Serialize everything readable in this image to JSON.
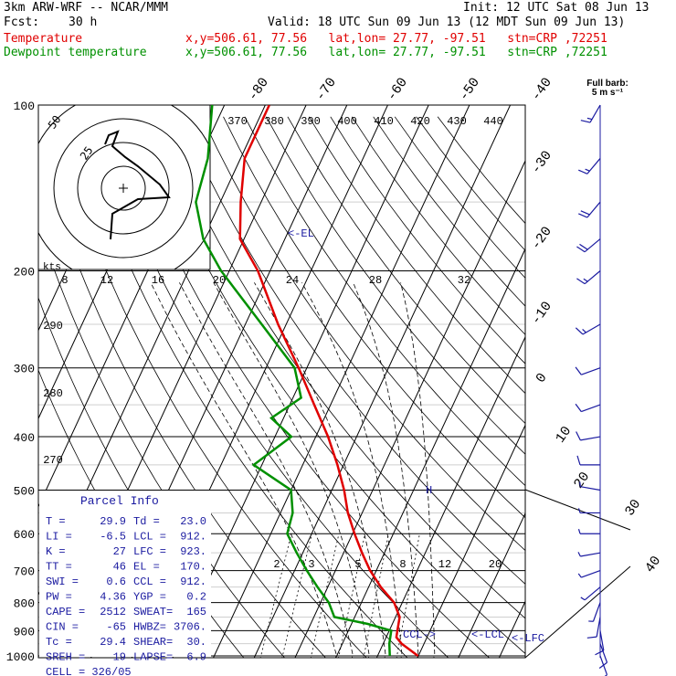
{
  "header": {
    "line1_left": "3km ARW-WRF -- NCAR/MMM",
    "line1_right": "Init: 12 UTC Sat 08 Jun 13",
    "fcst_label": "Fcst:",
    "fcst_value": "30 h",
    "valid": "Valid: 18 UTC Sun 09 Jun 13 (12 MDT Sun 09 Jun 13)",
    "temp_label": "Temperature",
    "temp_info": "x,y=506.61, 77.56   lat,lon= 27.77, -97.51   stn=CRP ,72251",
    "dew_label": "Dewpoint temperature",
    "dew_info": "x,y=506.61, 77.56   lat,lon= 27.77, -97.51   stn=CRP ,72251"
  },
  "colors": {
    "temperature": "#e00000",
    "dewpoint": "#009000",
    "text": "#000000",
    "barbs": "#1a1aa0",
    "parcel": "#1a1aa0"
  },
  "chart_data": {
    "type": "skew-t",
    "pressure_labels": [
      "100",
      "200",
      "300",
      "400",
      "500",
      "600",
      "700",
      "800",
      "900",
      "1000"
    ],
    "isotherm_labels": [
      "-80",
      "-70",
      "-60",
      "-50",
      "-40",
      "-30",
      "-20",
      "-10",
      "0",
      "10",
      "20",
      "30",
      "40"
    ],
    "theta_labels": [
      "370",
      "380",
      "390",
      "400",
      "410",
      "420",
      "430",
      "440"
    ],
    "theta_left_labels": [
      "290",
      "280",
      "270"
    ],
    "mixing_ratio_labels": [
      "2",
      "3",
      "5",
      "8",
      "12",
      "20"
    ],
    "mixing_ratio_upper_labels": [
      "8",
      "12",
      "16",
      "20",
      "24",
      "28",
      "32"
    ],
    "level_marks": [
      "<-EL",
      "<-LCL",
      "<-LFC",
      "CCL->"
    ],
    "lcl_arrow": "<-LCL",
    "lfc_arrow": "<-LFC",
    "ccl_arrow": "CCL->",
    "el_arrow": "<-EL",
    "h_mark": "H",
    "temperature_profile": [
      {
        "p": 1000,
        "t": 29.9
      },
      {
        "p": 950,
        "t": 24.5
      },
      {
        "p": 925,
        "t": 22.5
      },
      {
        "p": 900,
        "t": 22.0
      },
      {
        "p": 850,
        "t": 21.0
      },
      {
        "p": 800,
        "t": 18.0
      },
      {
        "p": 750,
        "t": 13.0
      },
      {
        "p": 700,
        "t": 8.5
      },
      {
        "p": 650,
        "t": 4.5
      },
      {
        "p": 600,
        "t": 0.5
      },
      {
        "p": 550,
        "t": -3.5
      },
      {
        "p": 500,
        "t": -7.0
      },
      {
        "p": 450,
        "t": -11.5
      },
      {
        "p": 400,
        "t": -17.0
      },
      {
        "p": 350,
        "t": -24.0
      },
      {
        "p": 300,
        "t": -32.0
      },
      {
        "p": 250,
        "t": -42.0
      },
      {
        "p": 200,
        "t": -53.0
      },
      {
        "p": 175,
        "t": -61.0
      },
      {
        "p": 150,
        "t": -65.0
      },
      {
        "p": 125,
        "t": -69.0
      },
      {
        "p": 100,
        "t": -69.0
      }
    ],
    "dewpoint_profile": [
      {
        "p": 1000,
        "td": 23.0
      },
      {
        "p": 950,
        "td": 21.5
      },
      {
        "p": 900,
        "td": 20.5
      },
      {
        "p": 875,
        "td": 14.0
      },
      {
        "p": 850,
        "td": 5.0
      },
      {
        "p": 800,
        "td": 2.0
      },
      {
        "p": 750,
        "td": -2.5
      },
      {
        "p": 700,
        "td": -7.0
      },
      {
        "p": 650,
        "td": -11.5
      },
      {
        "p": 600,
        "td": -16.0
      },
      {
        "p": 550,
        "td": -17.0
      },
      {
        "p": 500,
        "td": -20.0
      },
      {
        "p": 450,
        "td": -32.0
      },
      {
        "p": 400,
        "td": -26.0
      },
      {
        "p": 370,
        "td": -33.0
      },
      {
        "p": 340,
        "td": -28.0
      },
      {
        "p": 300,
        "td": -33.0
      },
      {
        "p": 250,
        "td": -46.0
      },
      {
        "p": 200,
        "td": -62.0
      },
      {
        "p": 175,
        "td": -70.0
      },
      {
        "p": 150,
        "td": -76.0
      },
      {
        "p": 125,
        "td": -78.0
      },
      {
        "p": 100,
        "td": -83.0
      }
    ],
    "hodograph": {
      "ring_labels": [
        "50",
        "25"
      ],
      "kts_label": "kts",
      "speed_labels": [
        "8",
        "12",
        "16",
        "20",
        "24",
        "28",
        "32"
      ],
      "path": [
        [
          -7,
          -28
        ],
        [
          -6,
          -14
        ],
        [
          1,
          -10
        ],
        [
          8,
          -6
        ],
        [
          25,
          -5
        ],
        [
          20,
          2
        ],
        [
          8,
          12
        ],
        [
          1,
          17
        ],
        [
          -6,
          23
        ],
        [
          -3,
          31
        ],
        [
          -8,
          29
        ],
        [
          -10,
          24
        ]
      ]
    },
    "wind_barb_label": "Full barb:",
    "wind_barb_unit": "5 m s⁻¹",
    "wind_profile": [
      {
        "p": 1000,
        "dir": 160,
        "spd": 5
      },
      {
        "p": 950,
        "dir": 160,
        "spd": 6
      },
      {
        "p": 900,
        "dir": 170,
        "spd": 6
      },
      {
        "p": 850,
        "dir": 190,
        "spd": 5
      },
      {
        "p": 800,
        "dir": 200,
        "spd": 4
      },
      {
        "p": 750,
        "dir": 230,
        "spd": 3
      },
      {
        "p": 700,
        "dir": 250,
        "spd": 3
      },
      {
        "p": 650,
        "dir": 260,
        "spd": 3
      },
      {
        "p": 600,
        "dir": 270,
        "spd": 3
      },
      {
        "p": 550,
        "dir": 270,
        "spd": 4
      },
      {
        "p": 500,
        "dir": 280,
        "spd": 4
      },
      {
        "p": 450,
        "dir": 270,
        "spd": 5
      },
      {
        "p": 400,
        "dir": 260,
        "spd": 6
      },
      {
        "p": 350,
        "dir": 250,
        "spd": 6
      },
      {
        "p": 300,
        "dir": 250,
        "spd": 7
      },
      {
        "p": 250,
        "dir": 240,
        "spd": 8
      },
      {
        "p": 200,
        "dir": 230,
        "spd": 9
      },
      {
        "p": 175,
        "dir": 230,
        "spd": 10
      },
      {
        "p": 150,
        "dir": 220,
        "spd": 10
      },
      {
        "p": 125,
        "dir": 220,
        "spd": 9
      },
      {
        "p": 100,
        "dir": 210,
        "spd": 8
      }
    ]
  },
  "parcel_info": {
    "title": "Parcel Info",
    "rows": [
      {
        "l1": "T  =",
        "v1": "29.9",
        "l2": "Td =",
        "v2": "23.0"
      },
      {
        "l1": "LI =",
        "v1": "-6.5",
        "l2": "LCL =",
        "v2": "912."
      },
      {
        "l1": "K  =",
        "v1": "27",
        "l2": "LFC =",
        "v2": "923."
      },
      {
        "l1": "TT =",
        "v1": "46",
        "l2": "EL  =",
        "v2": "170."
      },
      {
        "l1": "SWI =",
        "v1": "0.6",
        "l2": "CCL =",
        "v2": "912."
      },
      {
        "l1": "PW =",
        "v1": "4.36",
        "l2": "YGP =",
        "v2": "0.2"
      },
      {
        "l1": "CAPE =",
        "v1": "2512",
        "l2": "SWEAT=",
        "v2": "165"
      },
      {
        "l1": "CIN =",
        "v1": "-65",
        "l2": "HWBZ=",
        "v2": "3706."
      },
      {
        "l1": "Tc =",
        "v1": "29.4",
        "l2": "SHEAR=",
        "v2": "30."
      },
      {
        "l1": "SREH =",
        "v1": "19",
        "l2": "LAPSE=",
        "v2": "6.9"
      }
    ],
    "cell": "CELL = 326/05"
  }
}
